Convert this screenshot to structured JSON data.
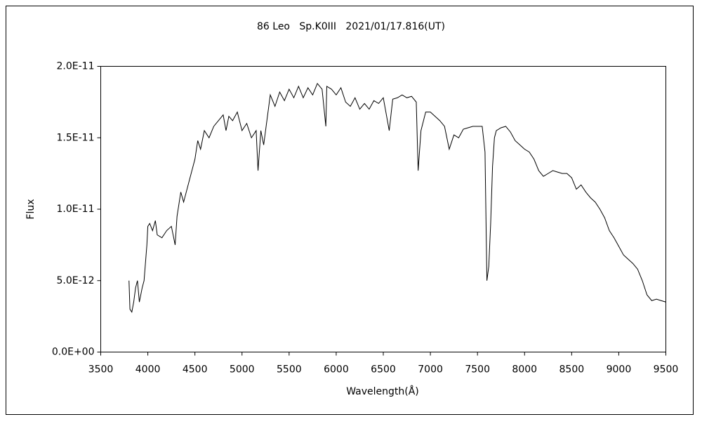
{
  "chart_data": {
    "type": "line",
    "title": "86 Leo   Sp.K0III   2021/01/17.816(UT)",
    "x_label": "Wavelength(Å)",
    "y_label": "Flux",
    "color": "#000000",
    "xlim": [
      3500,
      9500
    ],
    "xticks": [
      3500,
      4000,
      4500,
      5000,
      5500,
      6000,
      6500,
      7000,
      7500,
      8000,
      8500,
      9000,
      9500
    ],
    "ylim": [
      0,
      2e-11
    ],
    "yticks": [
      {
        "value": 0,
        "label": "0.0E+00"
      },
      {
        "value": 5e-12,
        "label": "5.0E-12"
      },
      {
        "value": 1e-11,
        "label": "1.0E-11"
      },
      {
        "value": 1.5e-11,
        "label": "1.5E-11"
      },
      {
        "value": 2e-11,
        "label": "2.0E-11"
      }
    ],
    "x": [
      3800,
      3810,
      3830,
      3850,
      3870,
      3890,
      3910,
      3940,
      3960,
      3990,
      4000,
      4020,
      4050,
      4080,
      4100,
      4150,
      4200,
      4250,
      4290,
      4310,
      4350,
      4380,
      4420,
      4460,
      4500,
      4530,
      4560,
      4600,
      4650,
      4700,
      4750,
      4800,
      4830,
      4860,
      4900,
      4950,
      5000,
      5050,
      5100,
      5150,
      5170,
      5200,
      5230,
      5270,
      5300,
      5350,
      5400,
      5450,
      5500,
      5550,
      5600,
      5650,
      5700,
      5750,
      5800,
      5850,
      5890,
      5900,
      5950,
      6000,
      6050,
      6100,
      6150,
      6200,
      6250,
      6300,
      6350,
      6400,
      6450,
      6500,
      6563,
      6600,
      6650,
      6700,
      6750,
      6800,
      6850,
      6870,
      6900,
      6950,
      7000,
      7050,
      7100,
      7150,
      7200,
      7250,
      7300,
      7350,
      7400,
      7450,
      7500,
      7550,
      7580,
      7600,
      7620,
      7640,
      7660,
      7680,
      7700,
      7750,
      7800,
      7850,
      7900,
      7950,
      8000,
      8050,
      8100,
      8150,
      8200,
      8250,
      8300,
      8350,
      8400,
      8450,
      8500,
      8550,
      8600,
      8650,
      8700,
      8750,
      8800,
      8850,
      8900,
      8950,
      9000,
      9050,
      9100,
      9150,
      9200,
      9250,
      9300,
      9350,
      9400,
      9450,
      9500
    ],
    "values": [
      5e-12,
      3e-12,
      2.8e-12,
      3.5e-12,
      4.5e-12,
      5e-12,
      3.5e-12,
      4.5e-12,
      5e-12,
      7.5e-12,
      8.8e-12,
      9e-12,
      8.5e-12,
      9.2e-12,
      8.2e-12,
      8e-12,
      8.5e-12,
      8.8e-12,
      7.5e-12,
      9.5e-12,
      1.12e-11,
      1.05e-11,
      1.15e-11,
      1.25e-11,
      1.35e-11,
      1.48e-11,
      1.42e-11,
      1.55e-11,
      1.5e-11,
      1.58e-11,
      1.62e-11,
      1.66e-11,
      1.55e-11,
      1.65e-11,
      1.62e-11,
      1.68e-11,
      1.55e-11,
      1.6e-11,
      1.5e-11,
      1.55e-11,
      1.27e-11,
      1.55e-11,
      1.45e-11,
      1.65e-11,
      1.8e-11,
      1.72e-11,
      1.82e-11,
      1.76e-11,
      1.84e-11,
      1.78e-11,
      1.86e-11,
      1.78e-11,
      1.85e-11,
      1.8e-11,
      1.88e-11,
      1.84e-11,
      1.58e-11,
      1.86e-11,
      1.84e-11,
      1.8e-11,
      1.85e-11,
      1.75e-11,
      1.72e-11,
      1.78e-11,
      1.7e-11,
      1.74e-11,
      1.7e-11,
      1.76e-11,
      1.74e-11,
      1.78e-11,
      1.55e-11,
      1.77e-11,
      1.78e-11,
      1.8e-11,
      1.78e-11,
      1.79e-11,
      1.75e-11,
      1.27e-11,
      1.55e-11,
      1.68e-11,
      1.68e-11,
      1.65e-11,
      1.62e-11,
      1.58e-11,
      1.42e-11,
      1.52e-11,
      1.5e-11,
      1.56e-11,
      1.57e-11,
      1.58e-11,
      1.58e-11,
      1.58e-11,
      1.4e-11,
      5e-12,
      6e-12,
      9e-12,
      1.3e-11,
      1.5e-11,
      1.55e-11,
      1.57e-11,
      1.58e-11,
      1.54e-11,
      1.48e-11,
      1.45e-11,
      1.42e-11,
      1.4e-11,
      1.35e-11,
      1.27e-11,
      1.23e-11,
      1.25e-11,
      1.27e-11,
      1.26e-11,
      1.25e-11,
      1.25e-11,
      1.22e-11,
      1.14e-11,
      1.17e-11,
      1.12e-11,
      1.08e-11,
      1.05e-11,
      1e-11,
      9.4e-12,
      8.5e-12,
      8e-12,
      7.4e-12,
      6.8e-12,
      6.5e-12,
      6.2e-12,
      5.8e-12,
      5e-12,
      4e-12,
      3.6e-12,
      3.7e-12,
      3.6e-12,
      3.5e-12
    ]
  }
}
